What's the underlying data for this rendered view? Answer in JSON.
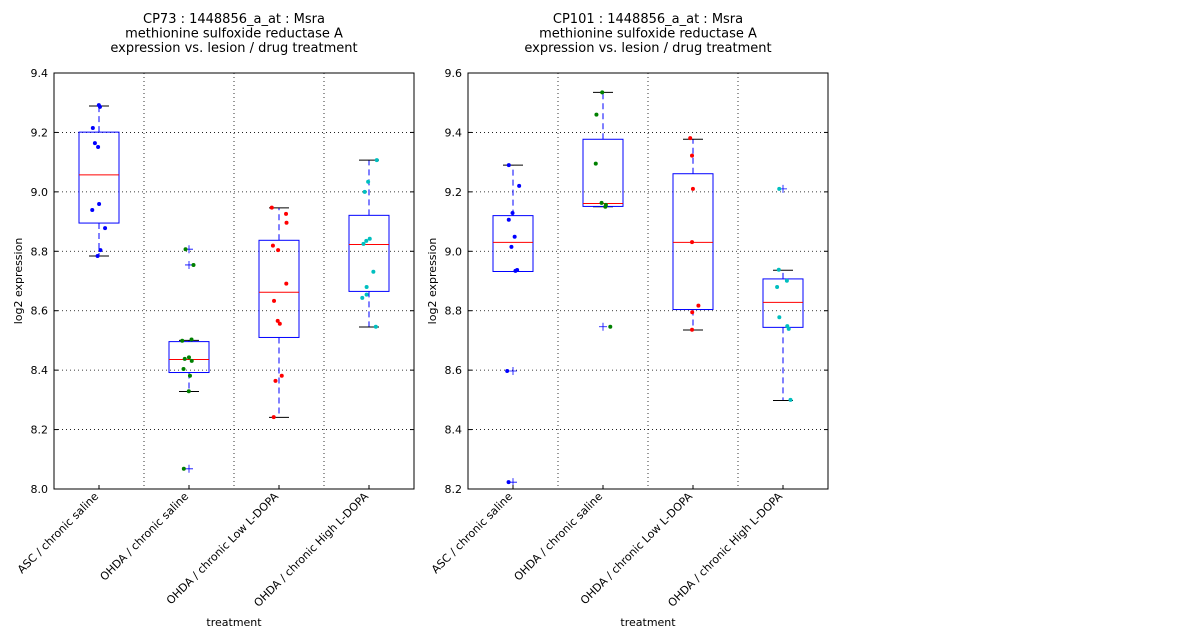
{
  "chart_data": [
    {
      "type": "box",
      "title_lines": [
        "CP73 : 1448856_a_at : Msra",
        "methionine sulfoxide reductase A",
        "expression vs. lesion / drug treatment"
      ],
      "xlabel": "treatment",
      "ylabel": "log2 expression",
      "ylim": [
        8.0,
        9.4
      ],
      "yticks": [
        "8.0",
        "8.2",
        "8.4",
        "8.6",
        "8.8",
        "9.0",
        "9.2",
        "9.4"
      ],
      "grid": true,
      "categories": [
        "ASC / chronic saline",
        "OHDA / chronic saline",
        "OHDA / chronic Low L-DOPA",
        "OHDA / chronic High L-DOPA"
      ],
      "colors": [
        "#0000ff",
        "#008000",
        "#ff0000",
        "#00bfbf"
      ],
      "boxes": [
        {
          "whisker_low": 8.784,
          "q1": 8.895,
          "median": 9.057,
          "q3": 9.201,
          "whisker_high": 9.289,
          "outliers": []
        },
        {
          "whisker_low": 8.328,
          "q1": 8.392,
          "median": 8.436,
          "q3": 8.496,
          "whisker_high": 8.5,
          "outliers": [
            8.807,
            8.754,
            8.068
          ]
        },
        {
          "whisker_low": 8.241,
          "q1": 8.51,
          "median": 8.662,
          "q3": 8.837,
          "whisker_high": 8.946,
          "outliers": []
        },
        {
          "whisker_low": 8.545,
          "q1": 8.665,
          "median": 8.823,
          "q3": 8.921,
          "whisker_high": 9.107,
          "outliers": []
        }
      ],
      "points": [
        [
          9.292,
          9.286,
          9.215,
          9.164,
          9.151,
          8.959,
          8.939,
          8.878,
          8.804,
          8.784
        ],
        [
          8.807,
          8.754,
          8.503,
          8.499,
          8.443,
          8.438,
          8.431,
          8.404,
          8.381,
          8.329,
          8.068
        ],
        [
          8.947,
          8.926,
          8.896,
          8.819,
          8.804,
          8.691,
          8.633,
          8.566,
          8.556,
          8.381,
          8.364,
          8.242
        ],
        [
          9.107,
          9.034,
          9.0,
          8.842,
          8.835,
          8.825,
          8.731,
          8.68,
          8.654,
          8.643,
          8.546
        ]
      ]
    },
    {
      "type": "box",
      "title_lines": [
        "CP101 : 1448856_a_at : Msra",
        "methionine sulfoxide reductase A",
        "expression vs. lesion / drug treatment"
      ],
      "xlabel": "treatment",
      "ylabel": "log2 expression",
      "ylim": [
        8.2,
        9.6
      ],
      "yticks": [
        "8.2",
        "8.4",
        "8.6",
        "8.8",
        "9.0",
        "9.2",
        "9.4",
        "9.6"
      ],
      "grid": true,
      "categories": [
        "ASC / chronic saline",
        "OHDA / chronic saline",
        "OHDA / chronic Low L-DOPA",
        "OHDA / chronic High L-DOPA"
      ],
      "colors": [
        "#0000ff",
        "#008000",
        "#ff0000",
        "#00bfbf"
      ],
      "boxes": [
        {
          "whisker_low": 8.932,
          "q1": 8.932,
          "median": 9.03,
          "q3": 9.12,
          "whisker_high": 9.29,
          "outliers": [
            8.597,
            8.223
          ]
        },
        {
          "whisker_low": 9.15,
          "q1": 9.151,
          "median": 9.161,
          "q3": 9.377,
          "whisker_high": 9.535,
          "outliers": [
            8.746
          ]
        },
        {
          "whisker_low": 8.735,
          "q1": 8.804,
          "median": 9.03,
          "q3": 9.261,
          "whisker_high": 9.377,
          "outliers": []
        },
        {
          "whisker_low": 8.498,
          "q1": 8.744,
          "median": 8.828,
          "q3": 8.907,
          "whisker_high": 8.936,
          "outliers": [
            9.21
          ]
        }
      ],
      "points": [
        [
          9.29,
          9.22,
          9.129,
          9.106,
          9.049,
          9.015,
          8.937,
          8.934,
          8.597,
          8.223
        ],
        [
          9.535,
          9.46,
          9.295,
          9.163,
          9.156,
          9.15,
          8.746
        ],
        [
          9.381,
          9.322,
          9.21,
          9.031,
          8.817,
          8.795,
          8.736
        ],
        [
          9.21,
          8.938,
          8.901,
          8.88,
          8.778,
          8.748,
          8.739,
          8.5
        ]
      ]
    }
  ]
}
